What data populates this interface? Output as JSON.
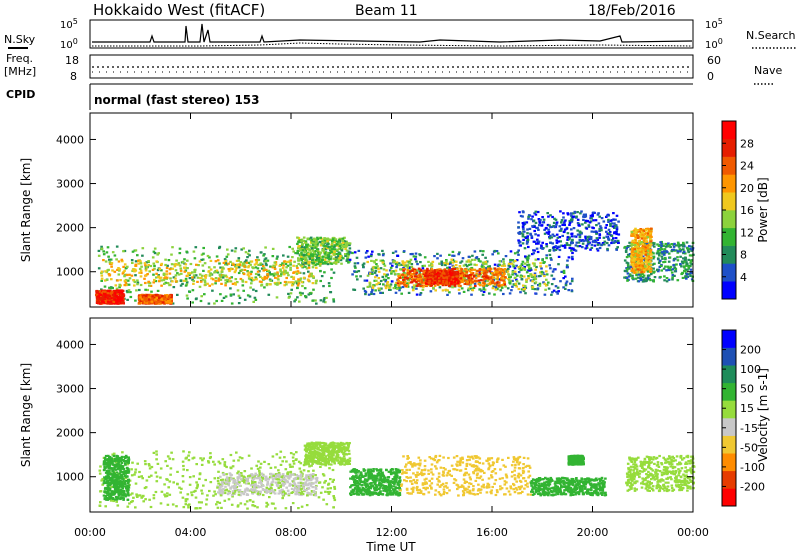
{
  "header": {
    "radar_title": "Hokkaido West (fitACF)",
    "beam_label": "Beam 11",
    "date_label": "18/Feb/2016"
  },
  "summary": {
    "nsky_label": "N.Sky",
    "nsearch_label": "N.Search",
    "freq_label_top": "Freq.",
    "freq_label_unit": "[MHz]",
    "nave_label": "Nave",
    "cpid_label": "CPID",
    "cpid_text": "normal (fast stereo) 153",
    "noise_ticks_left": [
      "10^5",
      "10^0"
    ],
    "noise_ticks_right": [
      "10^5",
      "10^0"
    ],
    "freq_ticks": [
      "18",
      "8"
    ],
    "nave_ticks": [
      "60",
      "0"
    ]
  },
  "colorbars": {
    "power": {
      "label": "Power [dB]",
      "ticks": [
        "28",
        "24",
        "20",
        "16",
        "12",
        "8",
        "4"
      ],
      "colors": [
        "#0000ff",
        "#1e50c8",
        "#228b5a",
        "#32b432",
        "#8cd23c",
        "#f0c81e",
        "#ff9600",
        "#f05a00",
        "#e61e00",
        "#ff0000"
      ]
    },
    "velocity": {
      "label": "Velocity [m s-1]",
      "ticks": [
        "200",
        "100",
        "50",
        "15",
        "-15",
        "-50",
        "-100",
        "-200"
      ],
      "colors": [
        "#ff0000",
        "#e63c00",
        "#ff8c00",
        "#f0c832",
        "#c8c8c8",
        "#96dc3c",
        "#32b432",
        "#1e8c5a",
        "#1e50b4",
        "#0000ff"
      ]
    }
  },
  "chart_data": [
    {
      "type": "heatmap",
      "title": "",
      "xlabel": "Time UT",
      "ylabel": "Slant Range [km]",
      "x_ticks": [
        "00:00",
        "04:00",
        "08:00",
        "12:00",
        "16:00",
        "20:00",
        "00:00"
      ],
      "y_ticks": [
        "1000",
        "2000",
        "3000",
        "4000"
      ],
      "xlim": [
        0,
        24
      ],
      "ylim": [
        200,
        4600
      ],
      "quantity": "Power [dB]",
      "regions": [
        {
          "x0": 0.3,
          "x1": 9.7,
          "y0": 300,
          "y1": 1600,
          "value": 12
        },
        {
          "x0": 0.4,
          "x1": 9.0,
          "y0": 700,
          "y1": 1300,
          "value": 18
        },
        {
          "x0": 0.2,
          "x1": 1.3,
          "y0": 300,
          "y1": 600,
          "value": 28
        },
        {
          "x0": 1.9,
          "x1": 3.2,
          "y0": 300,
          "y1": 500,
          "value": 24
        },
        {
          "x0": 8.2,
          "x1": 10.3,
          "y0": 1200,
          "y1": 1800,
          "value": 14
        },
        {
          "x0": 10.3,
          "x1": 19.2,
          "y0": 500,
          "y1": 1500,
          "value": 8
        },
        {
          "x0": 11.0,
          "x1": 18.2,
          "y0": 600,
          "y1": 1300,
          "value": 16
        },
        {
          "x0": 12.2,
          "x1": 16.5,
          "y0": 700,
          "y1": 1100,
          "value": 24
        },
        {
          "x0": 13.3,
          "x1": 14.6,
          "y0": 750,
          "y1": 1050,
          "value": 28
        },
        {
          "x0": 17.0,
          "x1": 21.0,
          "y0": 1500,
          "y1": 2400,
          "value": 6
        },
        {
          "x0": 21.2,
          "x1": 24.0,
          "y0": 800,
          "y1": 1700,
          "value": 10
        },
        {
          "x0": 21.5,
          "x1": 22.3,
          "y0": 1000,
          "y1": 2000,
          "value": 20
        }
      ]
    },
    {
      "type": "heatmap",
      "title": "",
      "xlabel": "Time UT",
      "ylabel": "Slant Range [km]",
      "x_ticks": [
        "00:00",
        "04:00",
        "08:00",
        "12:00",
        "16:00",
        "20:00",
        "00:00"
      ],
      "y_ticks": [
        "1000",
        "2000",
        "3000",
        "4000"
      ],
      "xlim": [
        0,
        24
      ],
      "ylim": [
        200,
        4600
      ],
      "quantity": "Velocity [m s-1]",
      "regions": [
        {
          "x0": 0.3,
          "x1": 9.7,
          "y0": 300,
          "y1": 1600,
          "value": 0
        },
        {
          "x0": 0.5,
          "x1": 1.5,
          "y0": 500,
          "y1": 1500,
          "value": 30
        },
        {
          "x0": 5.0,
          "x1": 9.0,
          "y0": 600,
          "y1": 1100,
          "value": -20
        },
        {
          "x0": 8.5,
          "x1": 10.3,
          "y0": 1300,
          "y1": 1800,
          "value": 0
        },
        {
          "x0": 10.3,
          "x1": 12.3,
          "y0": 600,
          "y1": 1200,
          "value": 30
        },
        {
          "x0": 12.3,
          "x1": 17.5,
          "y0": 600,
          "y1": 1500,
          "value": -70
        },
        {
          "x0": 17.5,
          "x1": 20.5,
          "y0": 600,
          "y1": 1000,
          "value": 30
        },
        {
          "x0": 19.0,
          "x1": 19.6,
          "y0": 1300,
          "y1": 1500,
          "value": 30
        },
        {
          "x0": 21.3,
          "x1": 24.0,
          "y0": 700,
          "y1": 1500,
          "value": 0
        }
      ]
    }
  ]
}
